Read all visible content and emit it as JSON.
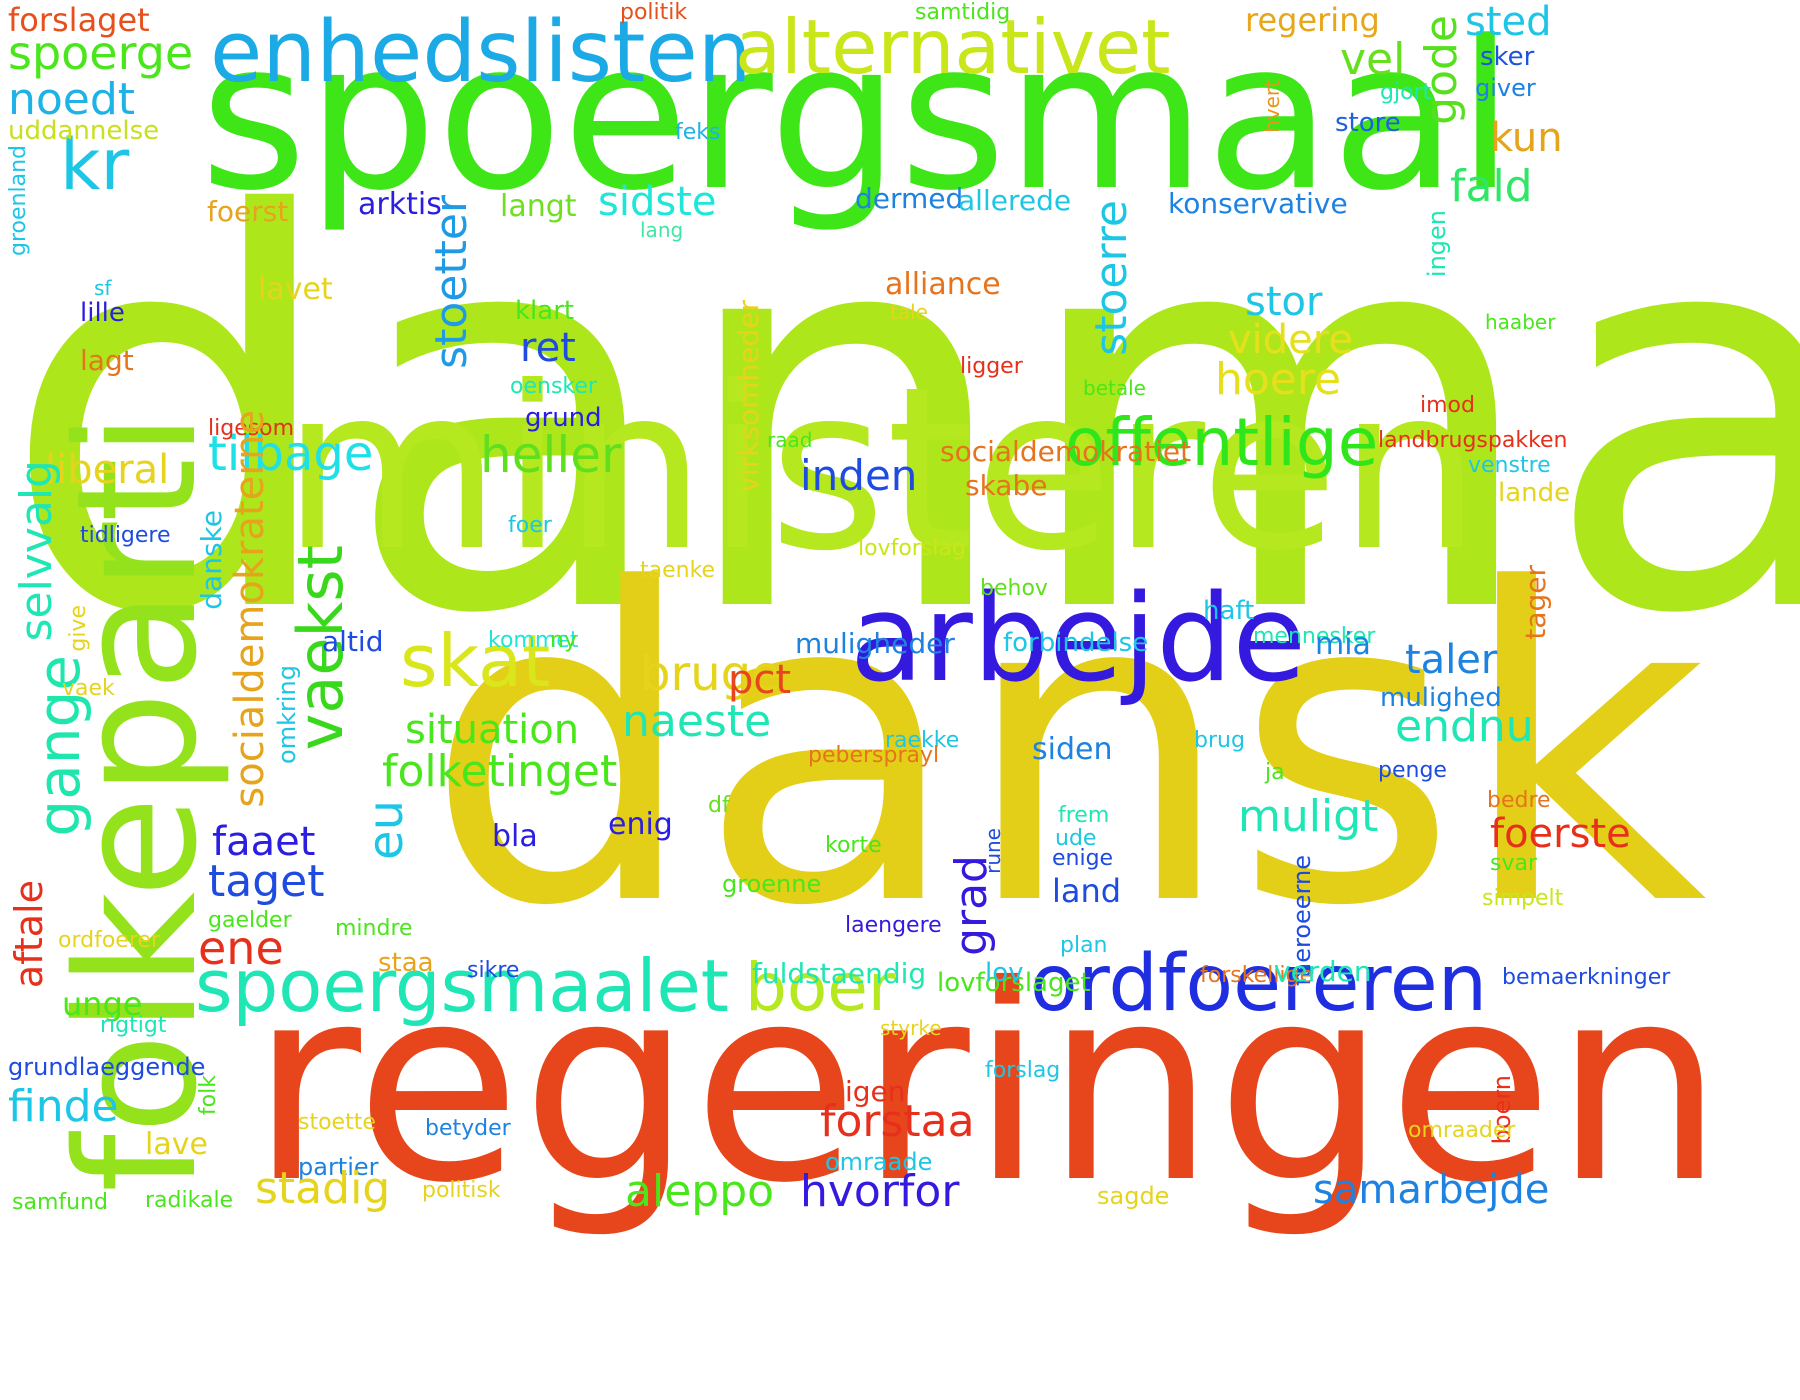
{
  "words": [
    {
      "text": "danmark",
      "color": "#aee61c"
    },
    {
      "text": "dansk",
      "color": "#e3cf17"
    },
    {
      "text": "ministeren",
      "color": "#b5e81e"
    },
    {
      "text": "regeringen",
      "color": "#e7461c"
    },
    {
      "text": "spoergsmaal",
      "color": "#3ee617"
    },
    {
      "text": "folkeparti",
      "color": "#93e21c"
    },
    {
      "text": "arbejde",
      "color": "#3419de"
    },
    {
      "text": "enhedslisten",
      "color": "#1baae6"
    },
    {
      "text": "alternativet",
      "color": "#c9e61a"
    },
    {
      "text": "ordfoereren",
      "color": "#1e2ee0"
    },
    {
      "text": "spoergsmaalet",
      "color": "#1ee6b4"
    },
    {
      "text": "offentlige",
      "color": "#2fe61c"
    },
    {
      "text": "vaekst",
      "color": "#39d81c"
    },
    {
      "text": "gange",
      "color": "#1ee6ac"
    },
    {
      "text": "skat",
      "color": "#d9e61c"
    },
    {
      "text": "boer",
      "color": "#b5e81e"
    },
    {
      "text": "heller",
      "color": "#5ee01e"
    },
    {
      "text": "tilbage",
      "color": "#1ee0e6"
    },
    {
      "text": "kr",
      "color": "#1ec6e6"
    },
    {
      "text": "noedt",
      "color": "#1eb2e6"
    },
    {
      "text": "spoerge",
      "color": "#4ae61c"
    },
    {
      "text": "forslaget",
      "color": "#e7501c"
    },
    {
      "text": "politik",
      "color": "#e7501c"
    },
    {
      "text": "samtidig",
      "color": "#49e61c"
    },
    {
      "text": "regering",
      "color": "#e7a71c"
    },
    {
      "text": "sted",
      "color": "#1ec6e6"
    },
    {
      "text": "vel",
      "color": "#66e01e"
    },
    {
      "text": "gode",
      "color": "#58e01e"
    },
    {
      "text": "sker",
      "color": "#1e53e0"
    },
    {
      "text": "giver",
      "color": "#1e82e0"
    },
    {
      "text": "gjort",
      "color": "#1ee6b4"
    },
    {
      "text": "store",
      "color": "#1e61e0"
    },
    {
      "text": "hvert",
      "color": "#e7961c"
    },
    {
      "text": "uddannelse",
      "color": "#c9e01e"
    },
    {
      "text": "feks",
      "color": "#1eb2e6"
    },
    {
      "text": "kun",
      "color": "#e6a41c"
    },
    {
      "text": "fald",
      "color": "#30e667"
    },
    {
      "text": "sidste",
      "color": "#1ee6d9"
    },
    {
      "text": "langt",
      "color": "#6ee01e"
    },
    {
      "text": "arktis",
      "color": "#2b1ee0"
    },
    {
      "text": "foerst",
      "color": "#e6a41c"
    },
    {
      "text": "dermed",
      "color": "#1e82e0"
    },
    {
      "text": "allerede",
      "color": "#1ec6e6"
    },
    {
      "text": "konservative",
      "color": "#1e82e0"
    },
    {
      "text": "groenland",
      "color": "#1ec6e6"
    },
    {
      "text": "lang",
      "color": "#40e6a4"
    },
    {
      "text": "ingen",
      "color": "#1ee6b4"
    },
    {
      "text": "stoetter",
      "color": "#1e9ae6"
    },
    {
      "text": "stoerre",
      "color": "#1ec6e6"
    },
    {
      "text": "stor",
      "color": "#1ec6e6"
    },
    {
      "text": "alliance",
      "color": "#e6741c"
    },
    {
      "text": "tale",
      "color": "#e6d41c"
    },
    {
      "text": "sf",
      "color": "#1ec6e6"
    },
    {
      "text": "lille",
      "color": "#2b1ee0"
    },
    {
      "text": "lavet",
      "color": "#e6d41c"
    },
    {
      "text": "klart",
      "color": "#4ae61c"
    },
    {
      "text": "videre",
      "color": "#e6e01c"
    },
    {
      "text": "haaber",
      "color": "#49e61c"
    },
    {
      "text": "lagt",
      "color": "#e6741c"
    },
    {
      "text": "ret",
      "color": "#1e4be0"
    },
    {
      "text": "hoere",
      "color": "#e6e01c"
    },
    {
      "text": "ligger",
      "color": "#e7301c"
    },
    {
      "text": "oensker",
      "color": "#1ee6b4"
    },
    {
      "text": "betale",
      "color": "#49e61c"
    },
    {
      "text": "imod",
      "color": "#e7301c"
    },
    {
      "text": "grund",
      "color": "#2b1ee0"
    },
    {
      "text": "ligesom",
      "color": "#e7301c"
    },
    {
      "text": "raad",
      "color": "#49e61c"
    },
    {
      "text": "landbrugspakken",
      "color": "#e7301c"
    },
    {
      "text": "virksomheder",
      "color": "#e6d41c"
    },
    {
      "text": "socialdemokratiet",
      "color": "#e6741c"
    },
    {
      "text": "venstre",
      "color": "#1ec6e6"
    },
    {
      "text": "liberal",
      "color": "#e6d41c"
    },
    {
      "text": "inden",
      "color": "#1e4be0"
    },
    {
      "text": "skabe",
      "color": "#e6741c"
    },
    {
      "text": "lande",
      "color": "#e6d41c"
    },
    {
      "text": "foer",
      "color": "#1ec6e6"
    },
    {
      "text": "selvvalg",
      "color": "#1ee6b4"
    },
    {
      "text": "tidligere",
      "color": "#1e4be0"
    },
    {
      "text": "danske",
      "color": "#1ec6e6"
    },
    {
      "text": "socialdemokraterne",
      "color": "#e6a41c"
    },
    {
      "text": "lovforslag",
      "color": "#c9e61a"
    },
    {
      "text": "taenke",
      "color": "#e6d41c"
    },
    {
      "text": "tager",
      "color": "#e6741c"
    },
    {
      "text": "behov",
      "color": "#5ee01e"
    },
    {
      "text": "give",
      "color": "#e6d41c"
    },
    {
      "text": "haft",
      "color": "#1ec6e6"
    },
    {
      "text": "altid",
      "color": "#1e4be0"
    },
    {
      "text": "kommet",
      "color": "#1ee6d9"
    },
    {
      "text": "ny",
      "color": "#49e61c"
    },
    {
      "text": "muligheder",
      "color": "#1e82e0"
    },
    {
      "text": "forbindelse",
      "color": "#1ec6e6"
    },
    {
      "text": "mennesker",
      "color": "#1ee6b4"
    },
    {
      "text": "mia",
      "color": "#1e82e0"
    },
    {
      "text": "bruge",
      "color": "#e6d41c"
    },
    {
      "text": "pct",
      "color": "#e7461c"
    },
    {
      "text": "taler",
      "color": "#1e82e0"
    },
    {
      "text": "vaek",
      "color": "#e6d41c"
    },
    {
      "text": "omkring",
      "color": "#1ec6e6"
    },
    {
      "text": "situation",
      "color": "#49e61c"
    },
    {
      "text": "naeste",
      "color": "#1ee6b4"
    },
    {
      "text": "mulighed",
      "color": "#1e82e0"
    },
    {
      "text": "endnu",
      "color": "#1ee6b4"
    },
    {
      "text": "raekke",
      "color": "#1ec6e6"
    },
    {
      "text": "pebersprayl",
      "color": "#e6741c"
    },
    {
      "text": "siden",
      "color": "#1e82e0"
    },
    {
      "text": "brug",
      "color": "#1ec6e6"
    },
    {
      "text": "folketinget",
      "color": "#49e61c"
    },
    {
      "text": "ja",
      "color": "#49e61c"
    },
    {
      "text": "penge",
      "color": "#1e4be0"
    },
    {
      "text": "eu",
      "color": "#1ec6e6"
    },
    {
      "text": "df",
      "color": "#66e01e"
    },
    {
      "text": "bedre",
      "color": "#e6741c"
    },
    {
      "text": "muligt",
      "color": "#1ee6b4"
    },
    {
      "text": "frem",
      "color": "#1ee6b4"
    },
    {
      "text": "faaet",
      "color": "#2b1ee0"
    },
    {
      "text": "bla",
      "color": "#2b1ee0"
    },
    {
      "text": "enig",
      "color": "#2b1ee0"
    },
    {
      "text": "korte",
      "color": "#49e61c"
    },
    {
      "text": "ude",
      "color": "#1ec6e6"
    },
    {
      "text": "enige",
      "color": "#1e4be0"
    },
    {
      "text": "foerste",
      "color": "#e7301c"
    },
    {
      "text": "svar",
      "color": "#49e61c"
    },
    {
      "text": "taget",
      "color": "#1e4be0"
    },
    {
      "text": "grad",
      "color": "#3419de"
    },
    {
      "text": "rune",
      "color": "#1e4be0"
    },
    {
      "text": "faeroeerne",
      "color": "#1e4be0"
    },
    {
      "text": "groenne",
      "color": "#49e61c"
    },
    {
      "text": "land",
      "color": "#1e4be0"
    },
    {
      "text": "simpelt",
      "color": "#c9e61a"
    },
    {
      "text": "aftale",
      "color": "#e7301c"
    },
    {
      "text": "gaelder",
      "color": "#49e61c"
    },
    {
      "text": "laengere",
      "color": "#3419de"
    },
    {
      "text": "ene",
      "color": "#e7301c"
    },
    {
      "text": "mindre",
      "color": "#49e61c"
    },
    {
      "text": "ordfoerer",
      "color": "#e6d41c"
    },
    {
      "text": "plan",
      "color": "#1ec6e6"
    },
    {
      "text": "staa",
      "color": "#e6a41c"
    },
    {
      "text": "sikre",
      "color": "#1e4be0"
    },
    {
      "text": "fuldstaendig",
      "color": "#1ee6b4"
    },
    {
      "text": "lovforslaget",
      "color": "#49e61c"
    },
    {
      "text": "lov",
      "color": "#1ec6e6"
    },
    {
      "text": "forskellige",
      "color": "#e6741c"
    },
    {
      "text": "verden",
      "color": "#1ee6b4"
    },
    {
      "text": "bemaerkninger",
      "color": "#1e4be0"
    },
    {
      "text": "unge",
      "color": "#49e61c"
    },
    {
      "text": "rigtigt",
      "color": "#1ee6b4"
    },
    {
      "text": "styrke",
      "color": "#e6d41c"
    },
    {
      "text": "grundlaeggende",
      "color": "#1e4be0"
    },
    {
      "text": "forslag",
      "color": "#1ec6e6"
    },
    {
      "text": "finde",
      "color": "#1ec6e6"
    },
    {
      "text": "folk",
      "color": "#49e61c"
    },
    {
      "text": "igen",
      "color": "#e7301c"
    },
    {
      "text": "forstaa",
      "color": "#e7301c"
    },
    {
      "text": "boern",
      "color": "#e7301c"
    },
    {
      "text": "stoette",
      "color": "#e6d41c"
    },
    {
      "text": "betyder",
      "color": "#1e82e0"
    },
    {
      "text": "omraader",
      "color": "#e6d41c"
    },
    {
      "text": "lave",
      "color": "#e6d41c"
    },
    {
      "text": "partier",
      "color": "#1e82e0"
    },
    {
      "text": "omraade",
      "color": "#1ec6e6"
    },
    {
      "text": "stadig",
      "color": "#e6d41c"
    },
    {
      "text": "aleppo",
      "color": "#49e61c"
    },
    {
      "text": "hvorfor",
      "color": "#3419de"
    },
    {
      "text": "samarbejde",
      "color": "#1e82e0"
    },
    {
      "text": "samfund",
      "color": "#49e61c"
    },
    {
      "text": "radikale",
      "color": "#49e61c"
    },
    {
      "text": "politisk",
      "color": "#e6d41c"
    },
    {
      "text": "sagde",
      "color": "#e6d41c"
    },
    {
      "text": "hen",
      "color": "#49e61c"
    }
  ]
}
